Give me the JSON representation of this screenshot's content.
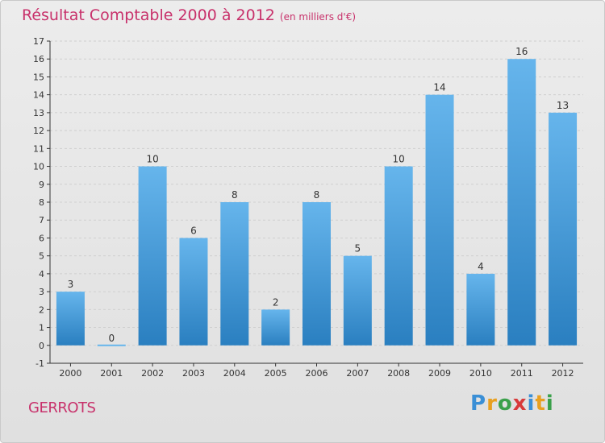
{
  "title": "Résultat Comptable 2000 à 2012",
  "subtitle": "(en milliers d'€)",
  "place": "GERROTS",
  "logo": {
    "letters": [
      "P",
      "r",
      "o",
      "x",
      "i",
      "t",
      "i"
    ],
    "colors": [
      "#3a8fd6",
      "#e8a020",
      "#3aa04a",
      "#d83a3a",
      "#3a8fd6",
      "#e8a020",
      "#3aa04a"
    ]
  },
  "colors": {
    "accent": "#c8316b",
    "bar_top": "#66b5ec",
    "bar_bottom": "#2a7fc0",
    "axis": "#333333"
  },
  "chart_data": {
    "type": "bar",
    "title": "Résultat Comptable 2000 à 2012",
    "xlabel": "",
    "ylabel": "(en milliers d'€)",
    "categories": [
      "2000",
      "2001",
      "2002",
      "2003",
      "2004",
      "2005",
      "2006",
      "2007",
      "2008",
      "2009",
      "2010",
      "2011",
      "2012"
    ],
    "values": [
      3,
      0,
      10,
      6,
      8,
      2,
      8,
      5,
      10,
      14,
      4,
      16,
      13
    ],
    "ylim": [
      -1,
      17
    ],
    "yticks": [
      -1,
      0,
      1,
      2,
      3,
      4,
      5,
      6,
      7,
      8,
      9,
      10,
      11,
      12,
      13,
      14,
      15,
      16,
      17
    ],
    "grid": true
  }
}
